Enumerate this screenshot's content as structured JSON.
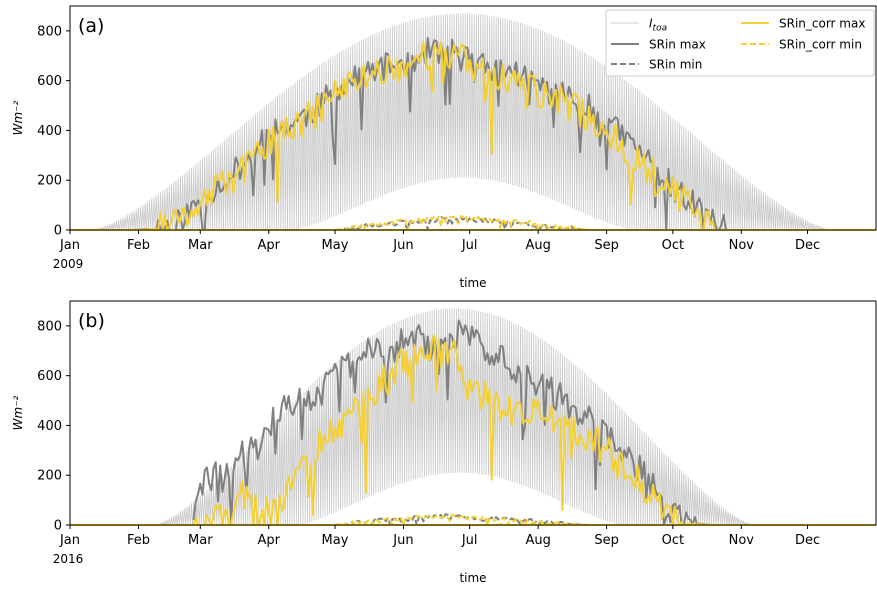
{
  "chart_data": [
    {
      "type": "line",
      "panel_label": "(a)",
      "year_label": "2009",
      "xlabel": "time",
      "ylabel": "Wm⁻²",
      "ylim": [
        0,
        900
      ],
      "yticks": [
        0,
        200,
        400,
        600,
        800
      ],
      "xticks": [
        "Jan",
        "Feb",
        "Mar",
        "Apr",
        "May",
        "Jun",
        "Jul",
        "Aug",
        "Sep",
        "Oct",
        "Nov",
        "Dec"
      ],
      "legend_position": "top-right",
      "legend": {
        "toa": "I",
        "toa_sub": "toa",
        "sr_max": "SRin max",
        "sr_min": "SRin min",
        "corr_max": "SRin_corr max",
        "corr_min": "SRin_corr min"
      },
      "colors": {
        "toa": "#c8c8c8",
        "sr": "#808080",
        "corr": "#f5d033"
      },
      "toa": {
        "peak_max": 870,
        "peak_min": 210,
        "max_start_day": 10,
        "max_end_day": 345,
        "min_start_day": 100,
        "min_end_day": 255
      },
      "sr_max_anchors": [
        [
          0,
          0
        ],
        [
          28,
          0
        ],
        [
          40,
          8
        ],
        [
          50,
          35
        ],
        [
          60,
          130
        ],
        [
          70,
          200
        ],
        [
          80,
          280
        ],
        [
          90,
          390
        ],
        [
          100,
          420
        ],
        [
          110,
          480
        ],
        [
          120,
          560
        ],
        [
          130,
          610
        ],
        [
          140,
          650
        ],
        [
          150,
          670
        ],
        [
          155,
          680
        ],
        [
          160,
          710
        ],
        [
          165,
          730
        ],
        [
          170,
          700
        ],
        [
          175,
          720
        ],
        [
          180,
          690
        ],
        [
          185,
          660
        ],
        [
          190,
          650
        ],
        [
          195,
          640
        ],
        [
          200,
          640
        ],
        [
          205,
          620
        ],
        [
          210,
          600
        ],
        [
          215,
          570
        ],
        [
          220,
          550
        ],
        [
          225,
          540
        ],
        [
          230,
          520
        ],
        [
          240,
          460
        ],
        [
          250,
          380
        ],
        [
          260,
          300
        ],
        [
          270,
          200
        ],
        [
          280,
          120
        ],
        [
          290,
          50
        ],
        [
          297,
          0
        ],
        [
          365,
          0
        ]
      ],
      "corr_max_anchors": [
        [
          0,
          0
        ],
        [
          28,
          0
        ],
        [
          40,
          5
        ],
        [
          50,
          30
        ],
        [
          60,
          120
        ],
        [
          70,
          180
        ],
        [
          80,
          250
        ],
        [
          90,
          360
        ],
        [
          100,
          400
        ],
        [
          110,
          460
        ],
        [
          120,
          550
        ],
        [
          130,
          600
        ],
        [
          140,
          640
        ],
        [
          150,
          660
        ],
        [
          155,
          670
        ],
        [
          160,
          700
        ],
        [
          165,
          710
        ],
        [
          170,
          690
        ],
        [
          175,
          700
        ],
        [
          180,
          670
        ],
        [
          185,
          650
        ],
        [
          190,
          630
        ],
        [
          195,
          620
        ],
        [
          200,
          600
        ],
        [
          205,
          590
        ],
        [
          210,
          560
        ],
        [
          215,
          540
        ],
        [
          220,
          520
        ],
        [
          225,
          510
        ],
        [
          230,
          480
        ],
        [
          240,
          420
        ],
        [
          250,
          340
        ],
        [
          260,
          260
        ],
        [
          270,
          180
        ],
        [
          280,
          100
        ],
        [
          290,
          40
        ],
        [
          297,
          0
        ],
        [
          365,
          0
        ]
      ],
      "sr_min_anchors": [
        [
          120,
          0
        ],
        [
          125,
          5
        ],
        [
          140,
          20
        ],
        [
          155,
          35
        ],
        [
          170,
          45
        ],
        [
          180,
          40
        ],
        [
          195,
          35
        ],
        [
          210,
          20
        ],
        [
          225,
          8
        ],
        [
          235,
          0
        ]
      ],
      "corr_min_anchors": [
        [
          120,
          0
        ],
        [
          125,
          8
        ],
        [
          140,
          25
        ],
        [
          155,
          40
        ],
        [
          170,
          55
        ],
        [
          180,
          50
        ],
        [
          195,
          40
        ],
        [
          210,
          25
        ],
        [
          225,
          10
        ],
        [
          235,
          0
        ]
      ],
      "noise": {
        "sr": 55,
        "corr": 65,
        "min": 10,
        "seed": 11
      }
    },
    {
      "type": "line",
      "panel_label": "(b)",
      "year_label": "2016",
      "xlabel": "time",
      "ylabel": "Wm⁻²",
      "ylim": [
        0,
        900
      ],
      "yticks": [
        0,
        200,
        400,
        600,
        800
      ],
      "xticks": [
        "Jan",
        "Feb",
        "Mar",
        "Apr",
        "May",
        "Jun",
        "Jul",
        "Aug",
        "Sep",
        "Oct",
        "Nov",
        "Dec"
      ],
      "colors": {
        "toa": "#c8c8c8",
        "sr": "#808080",
        "corr": "#f5d033"
      },
      "toa": {
        "peak_max": 870,
        "peak_min": 210,
        "max_start_day": 38,
        "max_end_day": 310,
        "min_start_day": 102,
        "min_end_day": 250
      },
      "sr_max_anchors": [
        [
          56,
          50
        ],
        [
          60,
          150
        ],
        [
          65,
          220
        ],
        [
          70,
          180
        ],
        [
          75,
          230
        ],
        [
          80,
          320
        ],
        [
          85,
          280
        ],
        [
          90,
          400
        ],
        [
          95,
          450
        ],
        [
          100,
          480
        ],
        [
          105,
          500
        ],
        [
          110,
          520
        ],
        [
          115,
          550
        ],
        [
          120,
          600
        ],
        [
          125,
          640
        ],
        [
          130,
          650
        ],
        [
          135,
          700
        ],
        [
          140,
          720
        ],
        [
          145,
          700
        ],
        [
          150,
          730
        ],
        [
          155,
          760
        ],
        [
          160,
          740
        ],
        [
          165,
          700
        ],
        [
          170,
          720
        ],
        [
          175,
          760
        ],
        [
          180,
          780
        ],
        [
          185,
          720
        ],
        [
          190,
          700
        ],
        [
          195,
          680
        ],
        [
          200,
          640
        ],
        [
          205,
          620
        ],
        [
          210,
          600
        ],
        [
          215,
          560
        ],
        [
          220,
          520
        ],
        [
          225,
          500
        ],
        [
          230,
          460
        ],
        [
          235,
          420
        ],
        [
          240,
          380
        ],
        [
          245,
          340
        ],
        [
          250,
          300
        ],
        [
          255,
          260
        ],
        [
          260,
          200
        ],
        [
          265,
          140
        ],
        [
          270,
          80
        ],
        [
          275,
          30
        ],
        [
          280,
          10
        ],
        [
          290,
          0
        ],
        [
          365,
          0
        ]
      ],
      "corr_max_anchors": [
        [
          56,
          30
        ],
        [
          60,
          30
        ],
        [
          65,
          20
        ],
        [
          70,
          30
        ],
        [
          75,
          80
        ],
        [
          80,
          150
        ],
        [
          85,
          60
        ],
        [
          90,
          50
        ],
        [
          95,
          60
        ],
        [
          100,
          200
        ],
        [
          105,
          250
        ],
        [
          110,
          300
        ],
        [
          115,
          330
        ],
        [
          120,
          380
        ],
        [
          125,
          420
        ],
        [
          130,
          450
        ],
        [
          135,
          500
        ],
        [
          140,
          560
        ],
        [
          145,
          600
        ],
        [
          150,
          640
        ],
        [
          155,
          680
        ],
        [
          160,
          700
        ],
        [
          165,
          720
        ],
        [
          170,
          740
        ],
        [
          175,
          700
        ],
        [
          180,
          560
        ],
        [
          185,
          520
        ],
        [
          190,
          500
        ],
        [
          195,
          480
        ],
        [
          200,
          460
        ],
        [
          205,
          450
        ],
        [
          210,
          440
        ],
        [
          215,
          430
        ],
        [
          220,
          420
        ],
        [
          225,
          400
        ],
        [
          230,
          380
        ],
        [
          235,
          360
        ],
        [
          240,
          320
        ],
        [
          245,
          280
        ],
        [
          250,
          240
        ],
        [
          255,
          200
        ],
        [
          260,
          150
        ],
        [
          265,
          100
        ],
        [
          270,
          50
        ],
        [
          275,
          20
        ],
        [
          280,
          5
        ],
        [
          290,
          0
        ],
        [
          365,
          0
        ]
      ],
      "sr_min_anchors": [
        [
          120,
          0
        ],
        [
          125,
          5
        ],
        [
          140,
          20
        ],
        [
          155,
          30
        ],
        [
          170,
          38
        ],
        [
          180,
          32
        ],
        [
          195,
          25
        ],
        [
          210,
          15
        ],
        [
          225,
          5
        ],
        [
          235,
          0
        ]
      ],
      "corr_min_anchors": [
        [
          120,
          0
        ],
        [
          125,
          5
        ],
        [
          140,
          18
        ],
        [
          155,
          28
        ],
        [
          170,
          36
        ],
        [
          180,
          30
        ],
        [
          195,
          22
        ],
        [
          210,
          12
        ],
        [
          225,
          4
        ],
        [
          235,
          0
        ]
      ],
      "noise": {
        "sr": 60,
        "corr": 70,
        "min": 8,
        "seed": 29
      }
    }
  ]
}
